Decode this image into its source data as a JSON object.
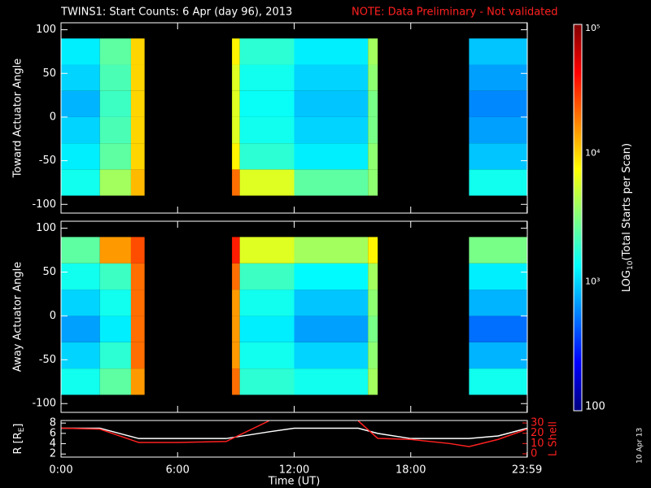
{
  "header": {
    "title": "TWINS1: Start Counts:  6 Apr (day  96), 2013",
    "note": "NOTE: Data Preliminary - Not validated",
    "date_stamp": "10 Apr 13"
  },
  "chart_data": [
    {
      "type": "heatmap",
      "ylabel": "Toward Actuator Angle",
      "x_edges": [
        0,
        2,
        3.6,
        4.3,
        8.8,
        9.2,
        12,
        15.8,
        16.3,
        21,
        24
      ],
      "y_edges": [
        -90,
        -60,
        -30,
        0,
        30,
        60,
        90
      ],
      "values": [
        [
          1500,
          4000,
          12000,
          null,
          20000,
          6000,
          2500,
          3500,
          null,
          1500
        ],
        [
          1200,
          2500,
          10000,
          null,
          8000,
          1800,
          1200,
          3500,
          null,
          900
        ],
        [
          1000,
          2200,
          10000,
          null,
          6000,
          1500,
          1000,
          3000,
          null,
          700
        ],
        [
          800,
          2000,
          10000,
          null,
          6000,
          1400,
          900,
          3000,
          null,
          600
        ],
        [
          1000,
          2200,
          10000,
          null,
          6000,
          1500,
          1000,
          3500,
          null,
          700
        ],
        [
          1200,
          2500,
          10000,
          null,
          8000,
          1800,
          1200,
          4000,
          null,
          900
        ]
      ],
      "xlim": [
        0,
        24
      ],
      "ylim": [
        -110,
        108
      ],
      "yticks": [
        -100,
        -50,
        0,
        50,
        100
      ]
    },
    {
      "type": "heatmap",
      "ylabel": "Away Actuator Angle",
      "x_edges": [
        0,
        2,
        3.6,
        4.3,
        8.8,
        9.2,
        12,
        15.8,
        16.3,
        21,
        24
      ],
      "y_edges": [
        -90,
        -60,
        -30,
        0,
        30,
        60,
        90
      ],
      "values": [
        [
          1500,
          2500,
          15000,
          null,
          20000,
          1800,
          1500,
          4000,
          null,
          1500
        ],
        [
          1000,
          1800,
          20000,
          null,
          15000,
          1500,
          1000,
          3500,
          null,
          800
        ],
        [
          700,
          1200,
          20000,
          null,
          15000,
          1200,
          700,
          3000,
          null,
          500
        ],
        [
          1000,
          1500,
          20000,
          null,
          15000,
          1500,
          900,
          3500,
          null,
          800
        ],
        [
          1500,
          2000,
          20000,
          null,
          20000,
          2000,
          1300,
          4000,
          null,
          1200
        ],
        [
          2500,
          15000,
          25000,
          null,
          35000,
          6000,
          4000,
          8000,
          null,
          3000
        ]
      ],
      "xlim": [
        0,
        24
      ],
      "ylim": [
        -110,
        108
      ],
      "yticks": [
        -100,
        -50,
        0,
        50,
        100
      ]
    },
    {
      "type": "line",
      "ylabel": [
        "R [R",
        "E",
        "]"
      ],
      "y2label": "L Shell",
      "xlabel": "Time (UT)",
      "x": [
        0,
        2,
        4,
        6,
        8.5,
        10.7,
        12,
        15.3,
        16.3,
        18,
        20,
        21,
        22.5,
        24
      ],
      "series": [
        {
          "name": "R",
          "color": "#ffffff",
          "values": [
            7,
            7,
            5,
            5,
            5,
            6.3,
            7,
            7,
            6,
            5,
            5,
            5,
            5.5,
            7
          ]
        },
        {
          "name": "L Shell",
          "color": "#ff2020",
          "axis": "y2",
          "values": [
            25,
            24,
            11,
            11,
            12,
            32,
            null,
            32,
            15,
            14,
            10,
            7,
            14,
            24
          ]
        }
      ],
      "xlim": [
        0,
        24
      ],
      "xticks": [
        {
          "value": 0,
          "label": "0:00"
        },
        {
          "value": 6,
          "label": "6:00"
        },
        {
          "value": 12,
          "label": "12:00"
        },
        {
          "value": 18,
          "label": "18:00"
        },
        {
          "value": 23.983,
          "label": "23:59"
        }
      ],
      "ylim": [
        1.4,
        8.5
      ],
      "yticks": [
        2,
        4,
        6,
        8
      ],
      "y2lim": [
        -3.2,
        32.4
      ],
      "y2ticks": [
        0,
        10,
        20,
        30
      ]
    },
    {
      "type": "colorbar",
      "label": [
        "LOG",
        "10",
        "(Total Starts per Scan)"
      ],
      "log_scale": true,
      "clim": [
        100,
        100000
      ],
      "ticks": [
        100,
        {
          "value": 1000,
          "label": "10³"
        },
        {
          "value": 10000,
          "label": "10⁴"
        },
        {
          "value": 100000,
          "label": "10⁵"
        }
      ]
    }
  ]
}
